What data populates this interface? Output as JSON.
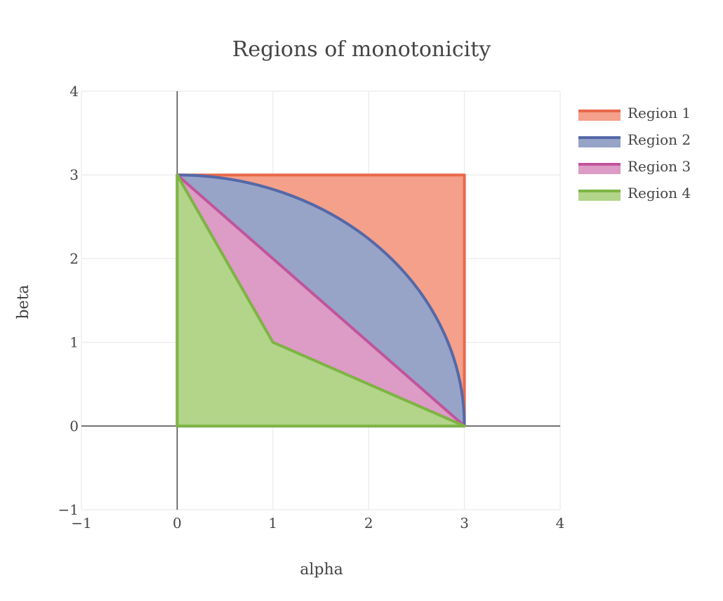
{
  "chart_data": {
    "type": "area",
    "title": "Regions of monotonicity",
    "xlabel": "alpha",
    "ylabel": "beta",
    "xlim": [
      -1,
      4
    ],
    "ylim": [
      -1,
      4
    ],
    "x_ticks": [
      -1,
      0,
      1,
      2,
      3,
      4
    ],
    "y_ticks": [
      -1,
      0,
      1,
      2,
      3,
      4
    ],
    "x_tick_labels": [
      "−1",
      "0",
      "1",
      "2",
      "3",
      "4"
    ],
    "y_tick_labels": [
      "−1",
      "0",
      "1",
      "2",
      "3",
      "4"
    ],
    "grid": true,
    "legend_position": "top-right",
    "series": [
      {
        "name": "Region 1",
        "line_color": "#e8694a",
        "fill_color": "#f4a08a",
        "shape": "polygon",
        "points": [
          [
            0,
            3
          ],
          [
            3,
            3
          ],
          [
            3,
            0
          ]
        ]
      },
      {
        "name": "Region 2",
        "line_color": "#5468a8",
        "fill_color": "#97a4c8",
        "shape": "quarter-circle",
        "center": [
          0,
          0
        ],
        "radius": 3,
        "points": [
          [
            0,
            3
          ],
          [
            3,
            0
          ]
        ]
      },
      {
        "name": "Region 3",
        "line_color": "#c2549b",
        "fill_color": "#dc9cc5",
        "shape": "polygon",
        "points": [
          [
            0,
            3
          ],
          [
            3,
            0
          ],
          [
            1,
            1
          ]
        ]
      },
      {
        "name": "Region 4",
        "line_color": "#7db543",
        "fill_color": "#b2d58a",
        "shape": "polygon",
        "points": [
          [
            0,
            3
          ],
          [
            1,
            1
          ],
          [
            3,
            0
          ],
          [
            0,
            0
          ]
        ]
      }
    ]
  }
}
